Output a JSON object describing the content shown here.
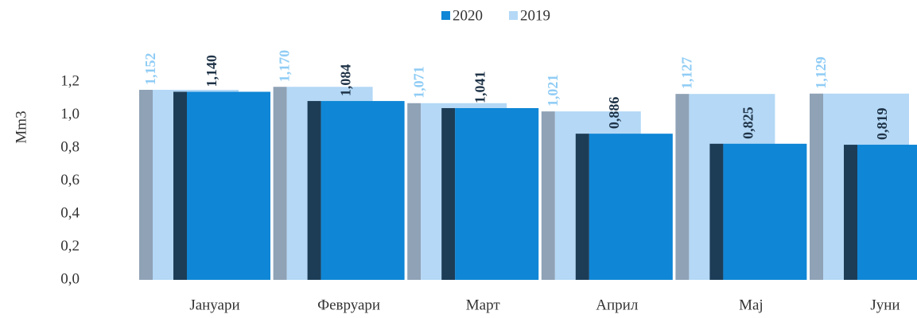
{
  "chart_data": {
    "type": "bar",
    "y_label": "Mm3",
    "categories": [
      "Јануари",
      "Февруари",
      "Март",
      "Април",
      "Мај",
      "Јуни"
    ],
    "series": [
      {
        "name": "2020",
        "color": "#0f86d6",
        "side_color": "#1d3d57",
        "label_color": "#1f3347",
        "values": [
          1.14,
          1.084,
          1.041,
          0.886,
          0.825,
          0.819
        ],
        "value_labels": [
          "1,140",
          "1,084",
          "1,041",
          "0,886",
          "0,825",
          "0,819"
        ]
      },
      {
        "name": "2019",
        "color": "#b4d8f6",
        "side_color": "#8fa2b6",
        "label_color": "#8fccf5",
        "values": [
          1.152,
          1.17,
          1.071,
          1.021,
          1.127,
          1.129
        ],
        "value_labels": [
          "1,152",
          "1,170",
          "1,071",
          "1,021",
          "1,127",
          "1,129"
        ]
      }
    ],
    "ylim": [
      0,
      1.2
    ],
    "yticks": [
      {
        "value": 0,
        "label": "0,0"
      },
      {
        "value": 0.2,
        "label": "0,2"
      },
      {
        "value": 0.4,
        "label": "0,4"
      },
      {
        "value": 0.6,
        "label": "0,6"
      },
      {
        "value": 0.8,
        "label": "0,8"
      },
      {
        "value": 1.0,
        "label": "1,0"
      },
      {
        "value": 1.2,
        "label": "1,2"
      }
    ],
    "legend": "top"
  }
}
